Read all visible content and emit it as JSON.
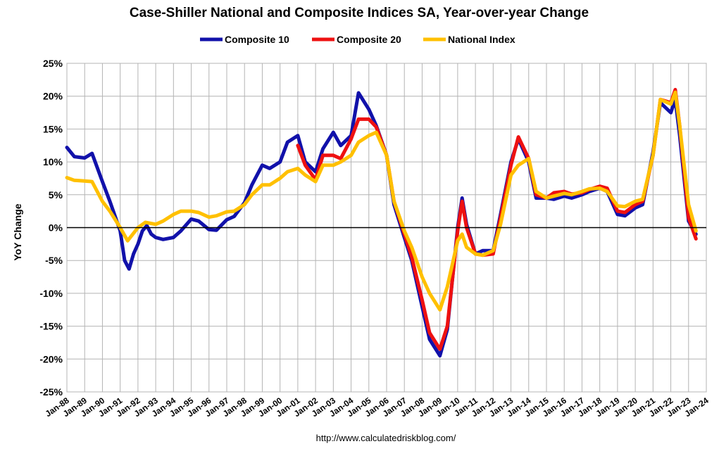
{
  "chart_data": {
    "type": "line",
    "title": "Case-Shiller National and Composite Indices SA, Year-over-year Change",
    "ylabel": "YoY Change",
    "xlabel": "",
    "source": "http://www.calculatedriskblog.com/",
    "ylim": [
      -25,
      25
    ],
    "ytick_values": [
      -25,
      -20,
      -15,
      -10,
      -5,
      0,
      5,
      10,
      15,
      20,
      25
    ],
    "ytick_labels": [
      "-25%",
      "-20%",
      "-15%",
      "-10%",
      "-5%",
      "0%",
      "5%",
      "10%",
      "15%",
      "20%",
      "25%"
    ],
    "xlim": [
      "1988-01",
      "2024-01"
    ],
    "xtick_labels": [
      "Jan-88",
      "Jan-89",
      "Jan-90",
      "Jan-91",
      "Jan-92",
      "Jan-93",
      "Jan-94",
      "Jan-95",
      "Jan-96",
      "Jan-97",
      "Jan-98",
      "Jan-99",
      "Jan-00",
      "Jan-01",
      "Jan-02",
      "Jan-03",
      "Jan-04",
      "Jan-05",
      "Jan-06",
      "Jan-07",
      "Jan-08",
      "Jan-09",
      "Jan-10",
      "Jan-11",
      "Jan-12",
      "Jan-13",
      "Jan-14",
      "Jan-15",
      "Jan-16",
      "Jan-17",
      "Jan-18",
      "Jan-19",
      "Jan-20",
      "Jan-21",
      "Jan-22",
      "Jan-23",
      "Jan-24"
    ],
    "grid": true,
    "legend_position": "top-center",
    "series": [
      {
        "name": "Composite 10",
        "color": "#1111aa",
        "points": [
          [
            "1988-01",
            12.2
          ],
          [
            "1988-06",
            10.8
          ],
          [
            "1989-01",
            10.6
          ],
          [
            "1989-06",
            11.3
          ],
          [
            "1990-01",
            7.0
          ],
          [
            "1990-06",
            4.0
          ],
          [
            "1991-01",
            -0.5
          ],
          [
            "1991-04",
            -5.0
          ],
          [
            "1991-07",
            -6.3
          ],
          [
            "1991-10",
            -4.0
          ],
          [
            "1992-01",
            -2.5
          ],
          [
            "1992-04",
            -0.5
          ],
          [
            "1992-07",
            0.3
          ],
          [
            "1992-10",
            -1.0
          ],
          [
            "1993-01",
            -1.5
          ],
          [
            "1993-06",
            -1.8
          ],
          [
            "1994-01",
            -1.5
          ],
          [
            "1994-06",
            -0.5
          ],
          [
            "1995-01",
            1.3
          ],
          [
            "1995-06",
            1.0
          ],
          [
            "1996-01",
            -0.3
          ],
          [
            "1996-06",
            -0.4
          ],
          [
            "1997-01",
            1.2
          ],
          [
            "1997-06",
            1.7
          ],
          [
            "1998-01",
            3.8
          ],
          [
            "1998-06",
            6.5
          ],
          [
            "1999-01",
            9.5
          ],
          [
            "1999-06",
            9.0
          ],
          [
            "2000-01",
            10.0
          ],
          [
            "2000-06",
            13.0
          ],
          [
            "2001-01",
            14.0
          ],
          [
            "2001-06",
            10.0
          ],
          [
            "2002-01",
            8.5
          ],
          [
            "2002-06",
            12.0
          ],
          [
            "2003-01",
            14.5
          ],
          [
            "2003-06",
            12.5
          ],
          [
            "2004-01",
            14.0
          ],
          [
            "2004-06",
            20.5
          ],
          [
            "2005-01",
            18.0
          ],
          [
            "2005-06",
            15.5
          ],
          [
            "2006-01",
            11.0
          ],
          [
            "2006-06",
            3.5
          ],
          [
            "2007-01",
            -1.5
          ],
          [
            "2007-06",
            -5.0
          ],
          [
            "2008-01",
            -12.0
          ],
          [
            "2008-06",
            -17.0
          ],
          [
            "2009-01",
            -19.5
          ],
          [
            "2009-06",
            -15.5
          ],
          [
            "2010-01",
            0.0
          ],
          [
            "2010-04",
            4.5
          ],
          [
            "2010-07",
            0.5
          ],
          [
            "2011-01",
            -4.0
          ],
          [
            "2011-06",
            -3.5
          ],
          [
            "2012-01",
            -3.5
          ],
          [
            "2012-06",
            2.0
          ],
          [
            "2013-01",
            10.0
          ],
          [
            "2013-06",
            13.5
          ],
          [
            "2014-01",
            10.0
          ],
          [
            "2014-06",
            4.5
          ],
          [
            "2015-01",
            4.5
          ],
          [
            "2015-06",
            4.3
          ],
          [
            "2016-01",
            4.8
          ],
          [
            "2016-06",
            4.5
          ],
          [
            "2017-01",
            5.0
          ],
          [
            "2017-06",
            5.5
          ],
          [
            "2018-01",
            6.0
          ],
          [
            "2018-06",
            5.5
          ],
          [
            "2019-01",
            2.0
          ],
          [
            "2019-06",
            1.8
          ],
          [
            "2020-01",
            3.0
          ],
          [
            "2020-06",
            3.5
          ],
          [
            "2021-01",
            11.5
          ],
          [
            "2021-06",
            19.0
          ],
          [
            "2022-01",
            17.5
          ],
          [
            "2022-04",
            19.5
          ],
          [
            "2022-07",
            14.0
          ],
          [
            "2023-01",
            1.0
          ],
          [
            "2023-06",
            -1.0
          ]
        ]
      },
      {
        "name": "Composite 20",
        "color": "#ee1111",
        "points": [
          [
            "2001-01",
            12.5
          ],
          [
            "2001-06",
            9.5
          ],
          [
            "2002-01",
            7.3
          ],
          [
            "2002-06",
            11.0
          ],
          [
            "2003-01",
            11.0
          ],
          [
            "2003-06",
            10.5
          ],
          [
            "2004-01",
            13.5
          ],
          [
            "2004-06",
            16.5
          ],
          [
            "2005-01",
            16.5
          ],
          [
            "2005-06",
            15.3
          ],
          [
            "2006-01",
            11.0
          ],
          [
            "2006-06",
            4.0
          ],
          [
            "2007-01",
            -1.0
          ],
          [
            "2007-06",
            -4.5
          ],
          [
            "2008-01",
            -11.0
          ],
          [
            "2008-06",
            -16.0
          ],
          [
            "2009-01",
            -18.5
          ],
          [
            "2009-06",
            -15.0
          ],
          [
            "2010-01",
            -0.5
          ],
          [
            "2010-04",
            4.0
          ],
          [
            "2010-07",
            0.0
          ],
          [
            "2011-01",
            -4.0
          ],
          [
            "2011-06",
            -4.2
          ],
          [
            "2012-01",
            -4.0
          ],
          [
            "2012-06",
            1.5
          ],
          [
            "2013-01",
            9.5
          ],
          [
            "2013-06",
            13.8
          ],
          [
            "2014-01",
            10.5
          ],
          [
            "2014-06",
            5.0
          ],
          [
            "2015-01",
            4.5
          ],
          [
            "2015-06",
            5.3
          ],
          [
            "2016-01",
            5.5
          ],
          [
            "2016-06",
            5.1
          ],
          [
            "2017-01",
            5.3
          ],
          [
            "2017-06",
            5.8
          ],
          [
            "2018-01",
            6.3
          ],
          [
            "2018-06",
            6.0
          ],
          [
            "2019-01",
            2.5
          ],
          [
            "2019-06",
            2.3
          ],
          [
            "2020-01",
            3.5
          ],
          [
            "2020-06",
            4.0
          ],
          [
            "2021-01",
            11.0
          ],
          [
            "2021-06",
            19.5
          ],
          [
            "2022-01",
            19.0
          ],
          [
            "2022-04",
            21.0
          ],
          [
            "2022-07",
            15.5
          ],
          [
            "2023-01",
            1.5
          ],
          [
            "2023-06",
            -1.7
          ]
        ]
      },
      {
        "name": "National Index",
        "color": "#ffc000",
        "points": [
          [
            "1988-01",
            7.6
          ],
          [
            "1988-06",
            7.2
          ],
          [
            "1989-01",
            7.1
          ],
          [
            "1989-06",
            7.0
          ],
          [
            "1990-01",
            4.0
          ],
          [
            "1990-06",
            2.5
          ],
          [
            "1991-01",
            0.0
          ],
          [
            "1991-06",
            -2.0
          ],
          [
            "1992-01",
            0.0
          ],
          [
            "1992-06",
            0.8
          ],
          [
            "1993-01",
            0.5
          ],
          [
            "1993-06",
            1.0
          ],
          [
            "1994-01",
            2.0
          ],
          [
            "1994-06",
            2.5
          ],
          [
            "1995-01",
            2.5
          ],
          [
            "1995-06",
            2.3
          ],
          [
            "1996-01",
            1.6
          ],
          [
            "1996-06",
            1.8
          ],
          [
            "1997-01",
            2.4
          ],
          [
            "1997-06",
            2.5
          ],
          [
            "1998-01",
            3.5
          ],
          [
            "1998-06",
            5.0
          ],
          [
            "1999-01",
            6.5
          ],
          [
            "1999-06",
            6.5
          ],
          [
            "2000-01",
            7.5
          ],
          [
            "2000-06",
            8.5
          ],
          [
            "2001-01",
            9.0
          ],
          [
            "2001-06",
            8.0
          ],
          [
            "2002-01",
            7.0
          ],
          [
            "2002-06",
            9.5
          ],
          [
            "2003-01",
            9.5
          ],
          [
            "2003-06",
            10.0
          ],
          [
            "2004-01",
            11.0
          ],
          [
            "2004-06",
            13.0
          ],
          [
            "2005-01",
            14.0
          ],
          [
            "2005-06",
            14.5
          ],
          [
            "2006-01",
            11.0
          ],
          [
            "2006-06",
            4.0
          ],
          [
            "2007-01",
            -0.5
          ],
          [
            "2007-06",
            -3.0
          ],
          [
            "2008-01",
            -7.5
          ],
          [
            "2008-06",
            -10.0
          ],
          [
            "2009-01",
            -12.5
          ],
          [
            "2009-06",
            -9.0
          ],
          [
            "2010-01",
            -2.0
          ],
          [
            "2010-04",
            -1.0
          ],
          [
            "2010-07",
            -3.0
          ],
          [
            "2011-01",
            -4.0
          ],
          [
            "2011-06",
            -4.2
          ],
          [
            "2012-01",
            -3.5
          ],
          [
            "2012-06",
            0.5
          ],
          [
            "2013-01",
            8.0
          ],
          [
            "2013-06",
            9.5
          ],
          [
            "2014-01",
            10.5
          ],
          [
            "2014-06",
            5.5
          ],
          [
            "2015-01",
            4.5
          ],
          [
            "2015-06",
            4.8
          ],
          [
            "2016-01",
            5.2
          ],
          [
            "2016-06",
            5.0
          ],
          [
            "2017-01",
            5.5
          ],
          [
            "2017-06",
            5.9
          ],
          [
            "2018-01",
            6.0
          ],
          [
            "2018-06",
            5.5
          ],
          [
            "2019-01",
            3.3
          ],
          [
            "2019-06",
            3.2
          ],
          [
            "2020-01",
            4.0
          ],
          [
            "2020-06",
            4.3
          ],
          [
            "2021-01",
            11.0
          ],
          [
            "2021-06",
            19.5
          ],
          [
            "2022-01",
            18.8
          ],
          [
            "2022-04",
            20.6
          ],
          [
            "2022-07",
            15.5
          ],
          [
            "2023-01",
            3.5
          ],
          [
            "2023-06",
            -0.5
          ]
        ]
      }
    ]
  }
}
